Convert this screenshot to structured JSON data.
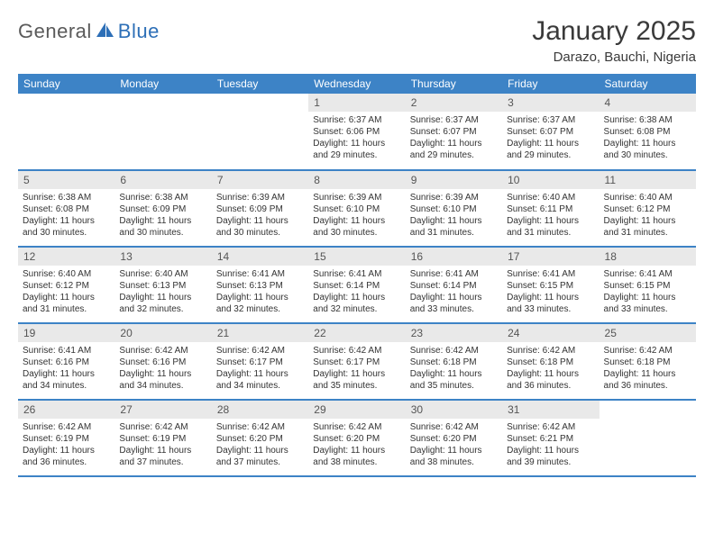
{
  "brand": {
    "text1": "General",
    "text2": "Blue"
  },
  "title": "January 2025",
  "location": "Darazo, Bauchi, Nigeria",
  "colors": {
    "header_bg": "#3d83c6",
    "header_text": "#ffffff",
    "daynum_bg": "#e9e9e9",
    "row_border": "#3d83c6",
    "logo_gray": "#5a5a5a",
    "logo_blue": "#2d6fb7",
    "text": "#333333"
  },
  "day_headers": [
    "Sunday",
    "Monday",
    "Tuesday",
    "Wednesday",
    "Thursday",
    "Friday",
    "Saturday"
  ],
  "weeks": [
    [
      {
        "blank": true
      },
      {
        "blank": true
      },
      {
        "blank": true
      },
      {
        "n": "1",
        "sunrise": "6:37 AM",
        "sunset": "6:06 PM",
        "daylight": "11 hours and 29 minutes."
      },
      {
        "n": "2",
        "sunrise": "6:37 AM",
        "sunset": "6:07 PM",
        "daylight": "11 hours and 29 minutes."
      },
      {
        "n": "3",
        "sunrise": "6:37 AM",
        "sunset": "6:07 PM",
        "daylight": "11 hours and 29 minutes."
      },
      {
        "n": "4",
        "sunrise": "6:38 AM",
        "sunset": "6:08 PM",
        "daylight": "11 hours and 30 minutes."
      }
    ],
    [
      {
        "n": "5",
        "sunrise": "6:38 AM",
        "sunset": "6:08 PM",
        "daylight": "11 hours and 30 minutes."
      },
      {
        "n": "6",
        "sunrise": "6:38 AM",
        "sunset": "6:09 PM",
        "daylight": "11 hours and 30 minutes."
      },
      {
        "n": "7",
        "sunrise": "6:39 AM",
        "sunset": "6:09 PM",
        "daylight": "11 hours and 30 minutes."
      },
      {
        "n": "8",
        "sunrise": "6:39 AM",
        "sunset": "6:10 PM",
        "daylight": "11 hours and 30 minutes."
      },
      {
        "n": "9",
        "sunrise": "6:39 AM",
        "sunset": "6:10 PM",
        "daylight": "11 hours and 31 minutes."
      },
      {
        "n": "10",
        "sunrise": "6:40 AM",
        "sunset": "6:11 PM",
        "daylight": "11 hours and 31 minutes."
      },
      {
        "n": "11",
        "sunrise": "6:40 AM",
        "sunset": "6:12 PM",
        "daylight": "11 hours and 31 minutes."
      }
    ],
    [
      {
        "n": "12",
        "sunrise": "6:40 AM",
        "sunset": "6:12 PM",
        "daylight": "11 hours and 31 minutes."
      },
      {
        "n": "13",
        "sunrise": "6:40 AM",
        "sunset": "6:13 PM",
        "daylight": "11 hours and 32 minutes."
      },
      {
        "n": "14",
        "sunrise": "6:41 AM",
        "sunset": "6:13 PM",
        "daylight": "11 hours and 32 minutes."
      },
      {
        "n": "15",
        "sunrise": "6:41 AM",
        "sunset": "6:14 PM",
        "daylight": "11 hours and 32 minutes."
      },
      {
        "n": "16",
        "sunrise": "6:41 AM",
        "sunset": "6:14 PM",
        "daylight": "11 hours and 33 minutes."
      },
      {
        "n": "17",
        "sunrise": "6:41 AM",
        "sunset": "6:15 PM",
        "daylight": "11 hours and 33 minutes."
      },
      {
        "n": "18",
        "sunrise": "6:41 AM",
        "sunset": "6:15 PM",
        "daylight": "11 hours and 33 minutes."
      }
    ],
    [
      {
        "n": "19",
        "sunrise": "6:41 AM",
        "sunset": "6:16 PM",
        "daylight": "11 hours and 34 minutes."
      },
      {
        "n": "20",
        "sunrise": "6:42 AM",
        "sunset": "6:16 PM",
        "daylight": "11 hours and 34 minutes."
      },
      {
        "n": "21",
        "sunrise": "6:42 AM",
        "sunset": "6:17 PM",
        "daylight": "11 hours and 34 minutes."
      },
      {
        "n": "22",
        "sunrise": "6:42 AM",
        "sunset": "6:17 PM",
        "daylight": "11 hours and 35 minutes."
      },
      {
        "n": "23",
        "sunrise": "6:42 AM",
        "sunset": "6:18 PM",
        "daylight": "11 hours and 35 minutes."
      },
      {
        "n": "24",
        "sunrise": "6:42 AM",
        "sunset": "6:18 PM",
        "daylight": "11 hours and 36 minutes."
      },
      {
        "n": "25",
        "sunrise": "6:42 AM",
        "sunset": "6:18 PM",
        "daylight": "11 hours and 36 minutes."
      }
    ],
    [
      {
        "n": "26",
        "sunrise": "6:42 AM",
        "sunset": "6:19 PM",
        "daylight": "11 hours and 36 minutes."
      },
      {
        "n": "27",
        "sunrise": "6:42 AM",
        "sunset": "6:19 PM",
        "daylight": "11 hours and 37 minutes."
      },
      {
        "n": "28",
        "sunrise": "6:42 AM",
        "sunset": "6:20 PM",
        "daylight": "11 hours and 37 minutes."
      },
      {
        "n": "29",
        "sunrise": "6:42 AM",
        "sunset": "6:20 PM",
        "daylight": "11 hours and 38 minutes."
      },
      {
        "n": "30",
        "sunrise": "6:42 AM",
        "sunset": "6:20 PM",
        "daylight": "11 hours and 38 minutes."
      },
      {
        "n": "31",
        "sunrise": "6:42 AM",
        "sunset": "6:21 PM",
        "daylight": "11 hours and 39 minutes."
      },
      {
        "blank": true
      }
    ]
  ],
  "labels": {
    "sunrise": "Sunrise: ",
    "sunset": "Sunset: ",
    "daylight": "Daylight: "
  }
}
